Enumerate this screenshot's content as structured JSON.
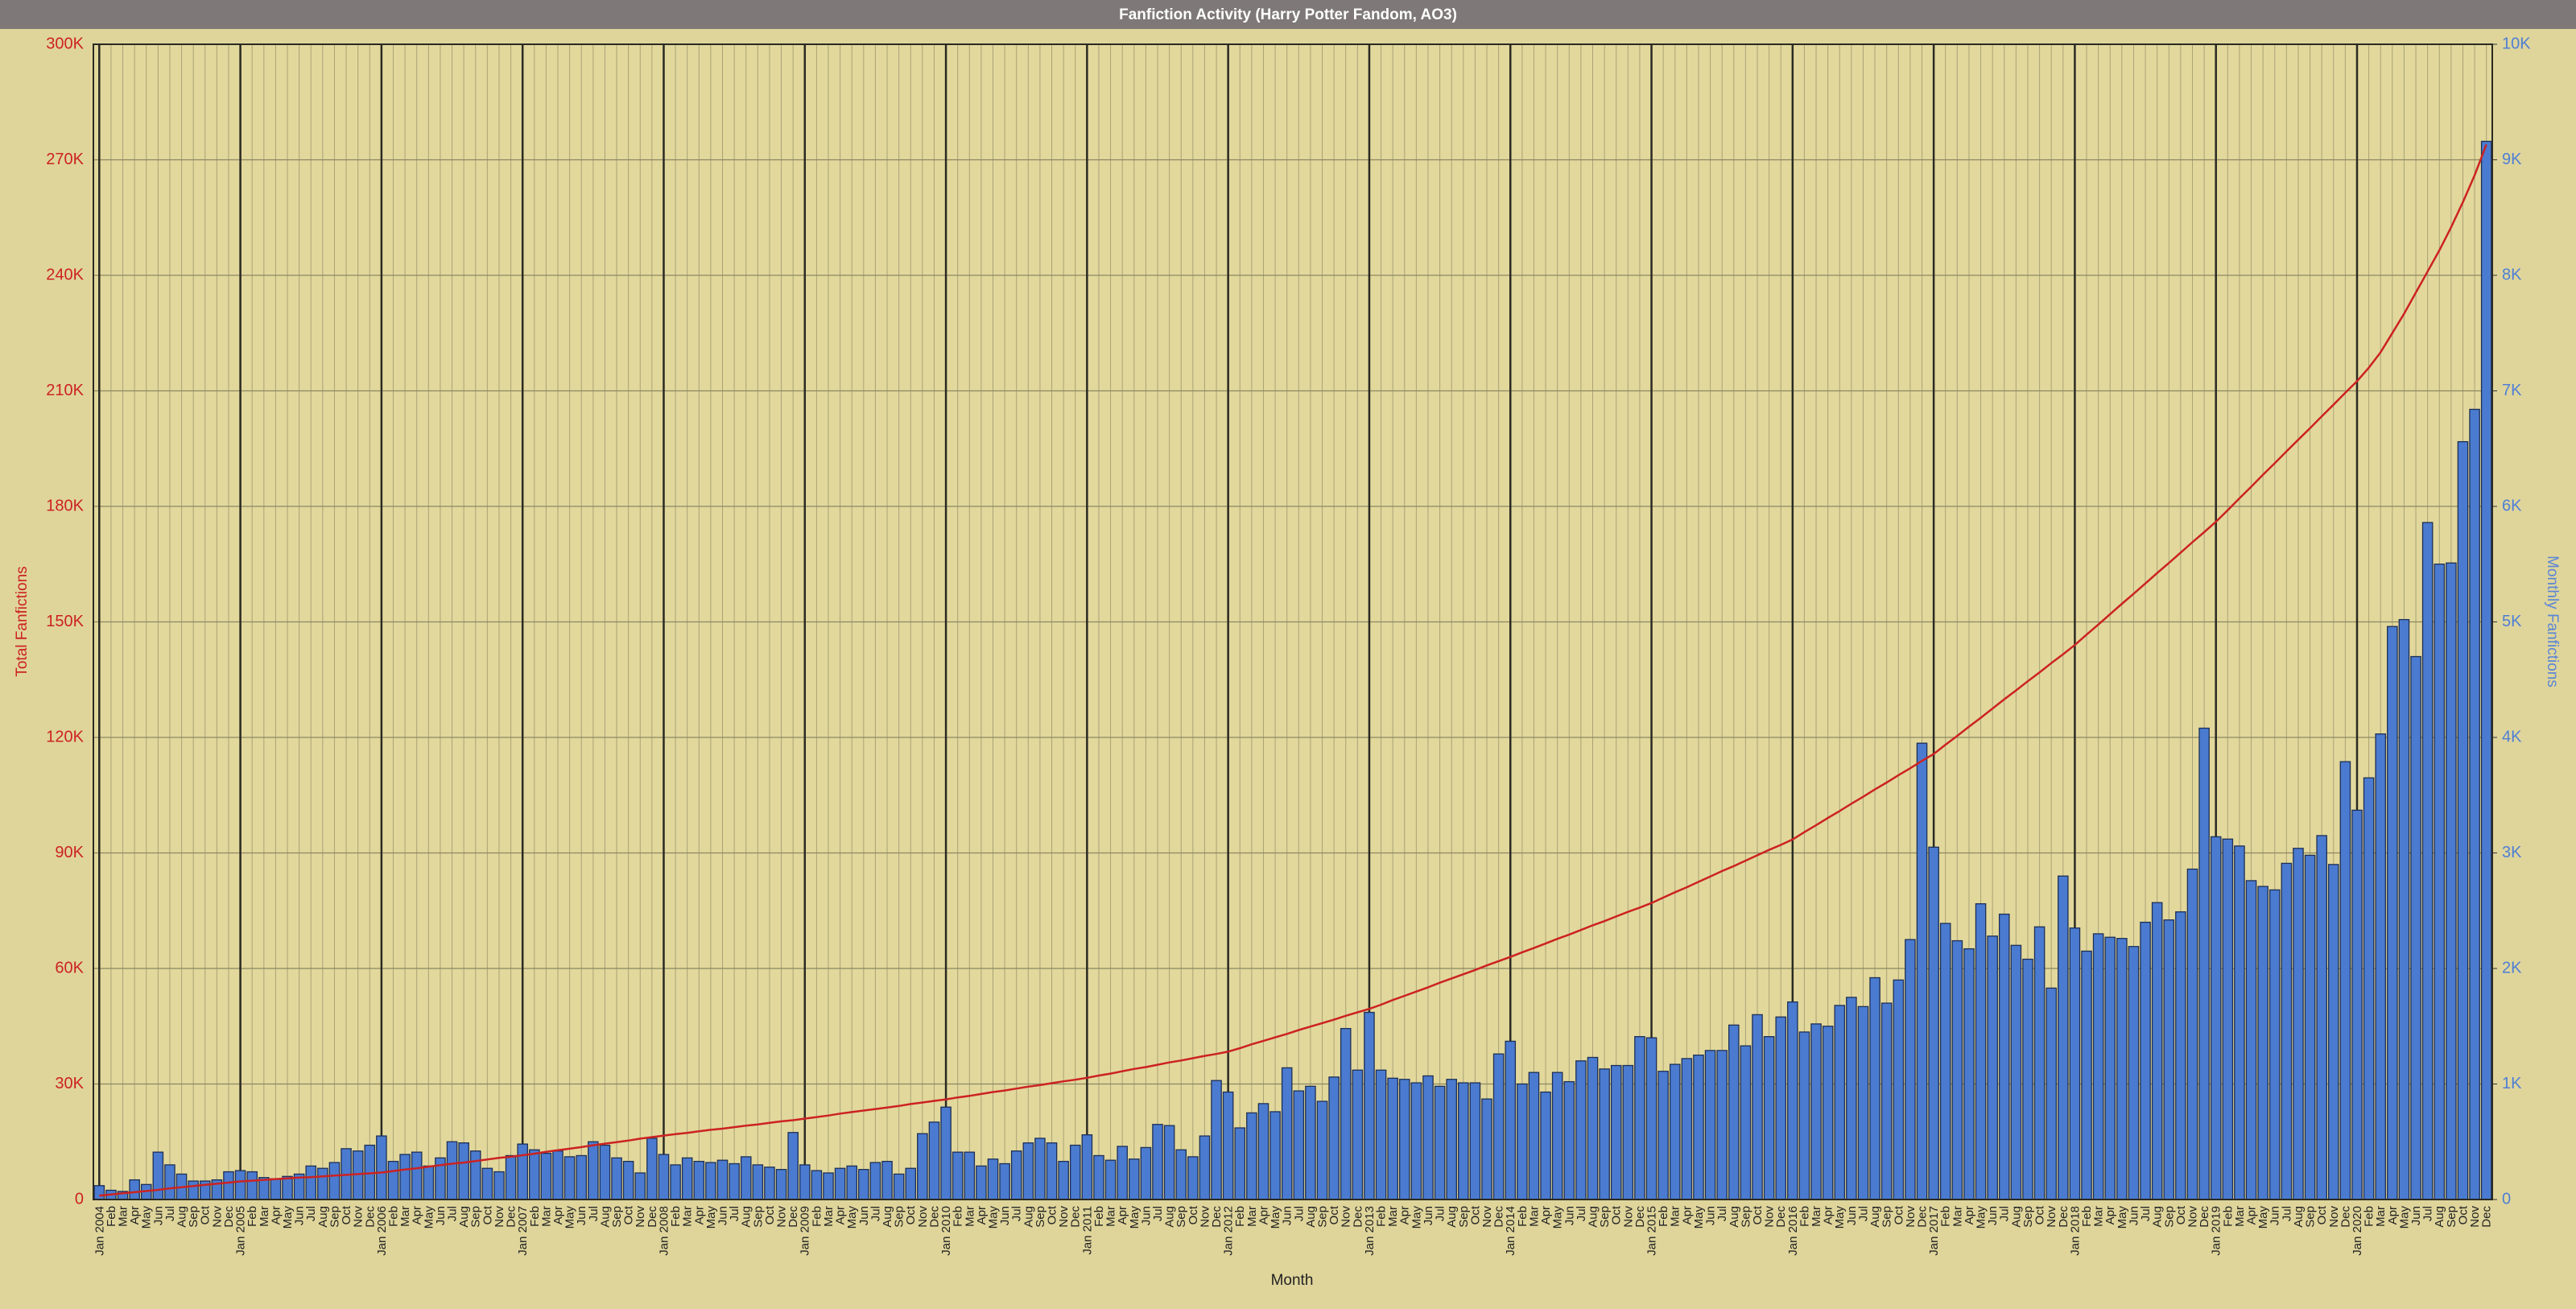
{
  "chart_data": {
    "type": "bar",
    "title": "Fanfiction Activity (Harry Potter Fandom, AO3)",
    "x_label": "Month",
    "y_label": "Total Fanfictions",
    "y2_label": "Monthly Fanfictions",
    "grid": true,
    "categories": [
      "Jan 2004",
      "Feb",
      "Mar",
      "Apr",
      "May",
      "Jun",
      "Jul",
      "Aug",
      "Sep",
      "Oct",
      "Nov",
      "Dec",
      "Jan 2005",
      "Feb",
      "Mar",
      "Apr",
      "May",
      "Jun",
      "Jul",
      "Aug",
      "Sep",
      "Oct",
      "Nov",
      "Dec",
      "Jan 2006",
      "Feb",
      "Mar",
      "Apr",
      "May",
      "Jun",
      "Jul",
      "Aug",
      "Sep",
      "Oct",
      "Nov",
      "Dec",
      "Jan 2007",
      "Feb",
      "Mar",
      "Apr",
      "May",
      "Jun",
      "Jul",
      "Aug",
      "Sep",
      "Oct",
      "Nov",
      "Dec",
      "Jan 2008",
      "Feb",
      "Mar",
      "Apr",
      "May",
      "Jun",
      "Jul",
      "Aug",
      "Sep",
      "Oct",
      "Nov",
      "Dec",
      "Jan 2009",
      "Feb",
      "Mar",
      "Apr",
      "May",
      "Jun",
      "Jul",
      "Aug",
      "Sep",
      "Oct",
      "Nov",
      "Dec",
      "Jan 2010",
      "Feb",
      "Mar",
      "Apr",
      "May",
      "Jun",
      "Jul",
      "Aug",
      "Sep",
      "Oct",
      "Nov",
      "Dec",
      "Jan 2011",
      "Feb",
      "Mar",
      "Apr",
      "May",
      "Jun",
      "Jul",
      "Aug",
      "Sep",
      "Oct",
      "Nov",
      "Dec",
      "Jan 2012",
      "Feb",
      "Mar",
      "Apr",
      "May",
      "Jun",
      "Jul",
      "Aug",
      "Sep",
      "Oct",
      "Nov",
      "Dec",
      "Jan 2013",
      "Feb",
      "Mar",
      "Apr",
      "May",
      "Jun",
      "Jul",
      "Aug",
      "Sep",
      "Oct",
      "Nov",
      "Dec",
      "Jan 2014",
      "Feb",
      "Mar",
      "Apr",
      "May",
      "Jun",
      "Jul",
      "Aug",
      "Sep",
      "Oct",
      "Nov",
      "Dec",
      "Jan 2015",
      "Feb",
      "Mar",
      "Apr",
      "May",
      "Jun",
      "Jul",
      "Aug",
      "Sep",
      "Oct",
      "Nov",
      "Dec",
      "Jan 2016",
      "Feb",
      "Mar",
      "Apr",
      "May",
      "Jun",
      "Jul",
      "Aug",
      "Sep",
      "Oct",
      "Nov",
      "Dec",
      "Jan 2017",
      "Feb",
      "Mar",
      "Apr",
      "May",
      "Jun",
      "Jul",
      "Aug",
      "Sep",
      "Oct",
      "Nov",
      "Dec",
      "Jan 2018",
      "Feb",
      "Mar",
      "Apr",
      "May",
      "Jun",
      "Jul",
      "Aug",
      "Sep",
      "Oct",
      "Nov",
      "Dec",
      "Jan 2019",
      "Feb",
      "Mar",
      "Apr",
      "May",
      "Jun",
      "Jul",
      "Aug",
      "Sep",
      "Oct",
      "Nov",
      "Dec",
      "Jan 2020",
      "Feb",
      "Mar",
      "Apr",
      "May",
      "Jun",
      "Jul",
      "Aug",
      "Sep",
      "Oct",
      "Nov",
      "Dec"
    ],
    "series": [
      {
        "name": "Monthly Fanfictions",
        "type": "bar",
        "axis": "y2",
        "color": "#4a7bd0",
        "values": [
          120,
          80,
          70,
          170,
          130,
          410,
          300,
          220,
          160,
          160,
          170,
          240,
          250,
          240,
          190,
          180,
          200,
          220,
          290,
          270,
          320,
          440,
          420,
          470,
          550,
          330,
          390,
          410,
          290,
          360,
          500,
          490,
          420,
          270,
          240,
          380,
          480,
          430,
          400,
          420,
          370,
          380,
          500,
          470,
          360,
          330,
          230,
          530,
          390,
          300,
          360,
          330,
          320,
          340,
          310,
          370,
          300,
          280,
          260,
          580,
          300,
          250,
          230,
          270,
          290,
          260,
          320,
          330,
          220,
          270,
          570,
          670,
          800,
          410,
          410,
          290,
          350,
          310,
          420,
          490,
          530,
          490,
          330,
          470,
          560,
          380,
          340,
          460,
          350,
          450,
          650,
          640,
          430,
          370,
          550,
          1030,
          930,
          620,
          750,
          830,
          760,
          1140,
          940,
          980,
          850,
          1060,
          1480,
          1120,
          1620,
          1120,
          1050,
          1040,
          1010,
          1070,
          980,
          1040,
          1010,
          1010,
          870,
          1260,
          1370,
          1000,
          1100,
          930,
          1100,
          1020,
          1200,
          1230,
          1130,
          1160,
          1160,
          1410,
          1400,
          1110,
          1170,
          1220,
          1250,
          1290,
          1290,
          1510,
          1330,
          1600,
          1410,
          1580,
          1710,
          1450,
          1520,
          1500,
          1680,
          1750,
          1670,
          1920,
          1700,
          1900,
          2250,
          3950,
          3050,
          2390,
          2240,
          2170,
          2560,
          2280,
          2470,
          2200,
          2080,
          2360,
          1830,
          2800,
          2350,
          2150,
          2300,
          2270,
          2260,
          2190,
          2400,
          2570,
          2420,
          2490,
          2860,
          4080,
          3140,
          3120,
          3060,
          2760,
          2710,
          2680,
          2910,
          3040,
          2980,
          3150,
          2900,
          3790,
          3370,
          3650,
          4030,
          4960,
          5020,
          4700,
          5860,
          5500,
          5510,
          6560,
          6840,
          9160
        ]
      },
      {
        "name": "Total Fanfictions",
        "type": "line",
        "axis": "y",
        "color": "#cc2222",
        "values": [
          1000,
          1300,
          1600,
          1900,
          2200,
          2500,
          2900,
          3200,
          3500,
          3800,
          4100,
          4400,
          4700,
          4900,
          5100,
          5300,
          5500,
          5700,
          5800,
          6000,
          6200,
          6400,
          6600,
          6800,
          7000,
          7400,
          7800,
          8100,
          8500,
          8900,
          9300,
          9600,
          10000,
          10400,
          10800,
          11100,
          11500,
          11900,
          12400,
          12800,
          13200,
          13600,
          14100,
          14500,
          14900,
          15300,
          15800,
          16200,
          16600,
          17000,
          17300,
          17700,
          18100,
          18400,
          18800,
          19200,
          19500,
          19900,
          20300,
          20600,
          21000,
          21400,
          21800,
          22300,
          22700,
          23100,
          23500,
          23900,
          24300,
          24800,
          25200,
          25600,
          26000,
          26500,
          26900,
          27400,
          27900,
          28300,
          28800,
          29300,
          29700,
          30200,
          30700,
          31100,
          31600,
          32200,
          32700,
          33300,
          33900,
          34400,
          35000,
          35600,
          36100,
          36700,
          37300,
          37800,
          38400,
          39300,
          40300,
          41200,
          42100,
          43000,
          44000,
          44900,
          45800,
          46700,
          47700,
          48600,
          49500,
          50600,
          51800,
          52900,
          54000,
          55100,
          56300,
          57400,
          58500,
          59600,
          60800,
          61900,
          63000,
          64200,
          65300,
          66500,
          67700,
          68800,
          70000,
          71200,
          72300,
          73500,
          74700,
          75800,
          77000,
          78400,
          79800,
          81100,
          82500,
          83900,
          85300,
          86600,
          88000,
          89400,
          90800,
          92100,
          93500,
          95400,
          97200,
          99100,
          100900,
          102800,
          104600,
          106500,
          108300,
          110200,
          112000,
          113900,
          115700,
          118100,
          120400,
          122800,
          125100,
          127500,
          129900,
          132200,
          134600,
          136900,
          139300,
          141600,
          144000,
          146700,
          149300,
          152000,
          154700,
          157300,
          160000,
          162700,
          165300,
          168000,
          170700,
          173300,
          176000,
          179000,
          182100,
          185100,
          188200,
          191200,
          194300,
          197300,
          200300,
          203400,
          206400,
          209500,
          212500,
          216000,
          220000,
          225000,
          230000,
          235500,
          241000,
          246500,
          252500,
          259000,
          266000,
          274000
        ]
      }
    ],
    "ylim": [
      0,
      300000
    ],
    "yticks": [
      0,
      {
        "value": 30000,
        "label": "30K"
      },
      {
        "value": 60000,
        "label": "60K"
      },
      {
        "value": 90000,
        "label": "90K"
      },
      {
        "value": 120000,
        "label": "120K"
      },
      {
        "value": 150000,
        "label": "150K"
      },
      {
        "value": 180000,
        "label": "180K"
      },
      {
        "value": 210000,
        "label": "210K"
      },
      {
        "value": 240000,
        "label": "240K"
      },
      {
        "value": 270000,
        "label": "270K"
      },
      {
        "value": 300000,
        "label": "300K"
      }
    ],
    "y2lim": [
      0,
      10000
    ],
    "y2ticks": [
      0,
      {
        "value": 1000,
        "label": "1K"
      },
      {
        "value": 2000,
        "label": "2K"
      },
      {
        "value": 3000,
        "label": "3K"
      },
      {
        "value": 4000,
        "label": "4K"
      },
      {
        "value": 5000,
        "label": "5K"
      },
      {
        "value": 6000,
        "label": "6K"
      },
      {
        "value": 7000,
        "label": "7K"
      },
      {
        "value": 8000,
        "label": "8K"
      },
      {
        "value": 9000,
        "label": "9K"
      },
      {
        "value": 10000,
        "label": "10K"
      }
    ]
  }
}
